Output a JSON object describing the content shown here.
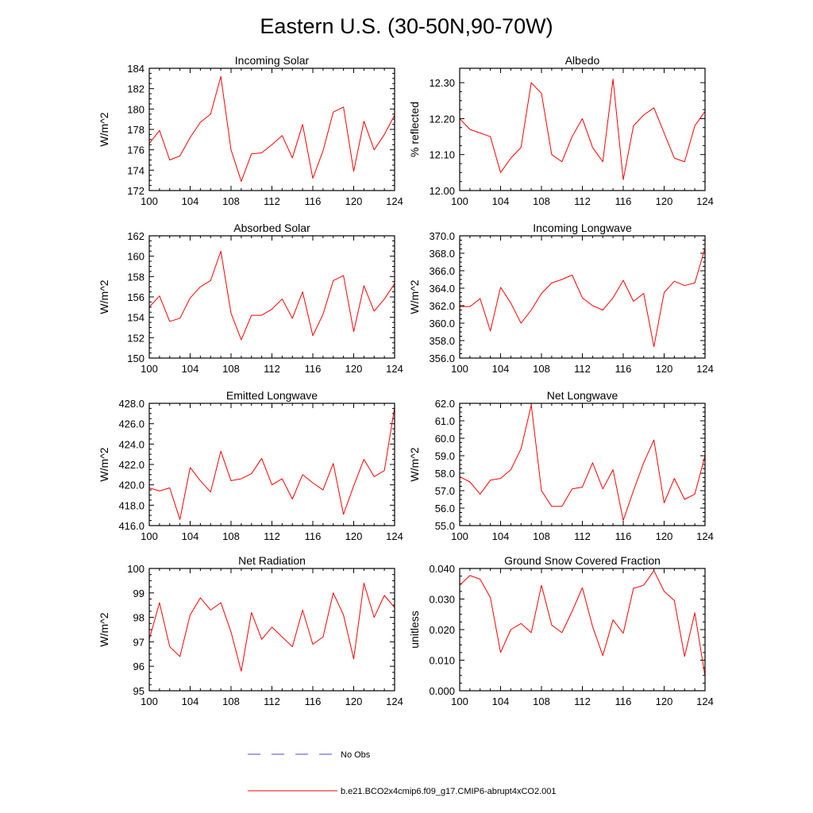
{
  "figure_title": "Eastern U.S. (30-50N,90-70W)",
  "legend": {
    "items": [
      {
        "label": "No Obs",
        "style": "dashed",
        "color": "#4a4ad0"
      },
      {
        "label": "b.e21.BCO2x4cmip6.f09_g17.CMIP6-abrupt4xCO2.001",
        "style": "solid",
        "color": "#ff0000"
      }
    ]
  },
  "chart_data": [
    {
      "type": "line",
      "title": "Incoming Solar",
      "xlabel": "",
      "ylabel": "W/m^2",
      "xlim": [
        100,
        124
      ],
      "ylim": [
        172,
        184
      ],
      "xticks": [
        100,
        104,
        108,
        112,
        116,
        120,
        124
      ],
      "xtick_labels": [
        "100",
        "104",
        "108",
        "112",
        "116",
        "120",
        "124"
      ],
      "yticks": [
        172,
        174,
        176,
        178,
        180,
        182,
        184
      ],
      "ytick_labels": [
        "172",
        "174",
        "176",
        "178",
        "180",
        "182",
        "184"
      ],
      "series": [
        {
          "name": "b.e21.BCO2x4cmip6.f09_g17.CMIP6-abrupt4xCO2.001",
          "color": "#ff0000",
          "x": [
            100,
            101,
            102,
            103,
            104,
            105,
            106,
            107,
            108,
            109,
            110,
            111,
            112,
            113,
            114,
            115,
            116,
            117,
            118,
            119,
            120,
            121,
            122,
            123,
            124
          ],
          "y": [
            176.6,
            177.9,
            175.0,
            175.4,
            177.2,
            178.7,
            179.5,
            183.2,
            176.0,
            172.9,
            175.6,
            175.7,
            176.5,
            177.4,
            175.2,
            178.5,
            173.2,
            175.9,
            179.7,
            180.2,
            173.9,
            178.8,
            176.0,
            177.5,
            179.4
          ]
        }
      ]
    },
    {
      "type": "line",
      "title": "Albedo",
      "xlabel": "",
      "ylabel": "% reflected",
      "xlim": [
        100,
        124
      ],
      "ylim": [
        12.0,
        12.34
      ],
      "xticks": [
        100,
        104,
        108,
        112,
        116,
        120,
        124
      ],
      "xtick_labels": [
        "100",
        "104",
        "108",
        "112",
        "116",
        "120",
        "124"
      ],
      "yticks": [
        12.0,
        12.1,
        12.2,
        12.3
      ],
      "ytick_labels": [
        "12.00",
        "12.10",
        "12.20",
        "12.30"
      ],
      "series": [
        {
          "name": "b.e21.BCO2x4cmip6.f09_g17.CMIP6-abrupt4xCO2.001",
          "color": "#ff0000",
          "x": [
            100,
            101,
            102,
            103,
            104,
            105,
            106,
            107,
            108,
            109,
            110,
            111,
            112,
            113,
            114,
            115,
            116,
            117,
            118,
            119,
            120,
            121,
            122,
            123,
            124
          ],
          "y": [
            12.2,
            12.17,
            12.16,
            12.15,
            12.05,
            12.09,
            12.12,
            12.3,
            12.27,
            12.1,
            12.08,
            12.15,
            12.2,
            12.12,
            12.08,
            12.31,
            12.03,
            12.18,
            12.21,
            12.23,
            12.16,
            12.09,
            12.08,
            12.18,
            12.22
          ]
        }
      ]
    },
    {
      "type": "line",
      "title": "Absorbed Solar",
      "xlabel": "",
      "ylabel": "W/m^2",
      "xlim": [
        100,
        124
      ],
      "ylim": [
        150,
        162
      ],
      "xticks": [
        100,
        104,
        108,
        112,
        116,
        120,
        124
      ],
      "xtick_labels": [
        "100",
        "104",
        "108",
        "112",
        "116",
        "120",
        "124"
      ],
      "yticks": [
        150,
        152,
        154,
        156,
        158,
        160,
        162
      ],
      "ytick_labels": [
        "150",
        "152",
        "154",
        "156",
        "158",
        "160",
        "162"
      ],
      "series": [
        {
          "name": "b.e21.BCO2x4cmip6.f09_g17.CMIP6-abrupt4xCO2.001",
          "color": "#ff0000",
          "x": [
            100,
            101,
            102,
            103,
            104,
            105,
            106,
            107,
            108,
            109,
            110,
            111,
            112,
            113,
            114,
            115,
            116,
            117,
            118,
            119,
            120,
            121,
            122,
            123,
            124
          ],
          "y": [
            155.0,
            156.1,
            153.6,
            153.9,
            155.9,
            157.0,
            157.6,
            160.5,
            154.4,
            151.8,
            154.2,
            154.2,
            154.8,
            155.8,
            153.9,
            156.5,
            152.2,
            154.3,
            157.6,
            158.1,
            152.6,
            157.1,
            154.6,
            155.8,
            157.3
          ]
        }
      ]
    },
    {
      "type": "line",
      "title": "Incoming Longwave",
      "xlabel": "",
      "ylabel": "W/m^2",
      "xlim": [
        100,
        124
      ],
      "ylim": [
        356,
        370
      ],
      "xticks": [
        100,
        104,
        108,
        112,
        116,
        120,
        124
      ],
      "xtick_labels": [
        "100",
        "104",
        "108",
        "112",
        "116",
        "120",
        "124"
      ],
      "yticks": [
        356,
        358,
        360,
        362,
        364,
        366,
        368,
        370
      ],
      "ytick_labels": [
        "356.0",
        "358.0",
        "360.0",
        "362.0",
        "364.0",
        "366.0",
        "368.0",
        "370.0"
      ],
      "series": [
        {
          "name": "b.e21.BCO2x4cmip6.f09_g17.CMIP6-abrupt4xCO2.001",
          "color": "#ff0000",
          "x": [
            100,
            101,
            102,
            103,
            104,
            105,
            106,
            107,
            108,
            109,
            110,
            111,
            112,
            113,
            114,
            115,
            116,
            117,
            118,
            119,
            120,
            121,
            122,
            123,
            124
          ],
          "y": [
            361.9,
            361.9,
            362.8,
            359.1,
            364.1,
            362.3,
            360.0,
            361.5,
            363.4,
            364.6,
            365.0,
            365.5,
            362.9,
            362.0,
            361.5,
            362.9,
            364.9,
            362.5,
            363.4,
            357.3,
            363.5,
            364.8,
            364.3,
            364.6,
            368.6
          ]
        }
      ]
    },
    {
      "type": "line",
      "title": "Emitted Longwave",
      "xlabel": "",
      "ylabel": "W/m^2",
      "xlim": [
        100,
        124
      ],
      "ylim": [
        416,
        428
      ],
      "xticks": [
        100,
        104,
        108,
        112,
        116,
        120,
        124
      ],
      "xtick_labels": [
        "100",
        "104",
        "108",
        "112",
        "116",
        "120",
        "124"
      ],
      "yticks": [
        416,
        418,
        420,
        422,
        424,
        426,
        428
      ],
      "ytick_labels": [
        "416.0",
        "418.0",
        "420.0",
        "422.0",
        "424.0",
        "426.0",
        "428.0"
      ],
      "series": [
        {
          "name": "b.e21.BCO2x4cmip6.f09_g17.CMIP6-abrupt4xCO2.001",
          "color": "#ff0000",
          "x": [
            100,
            101,
            102,
            103,
            104,
            105,
            106,
            107,
            108,
            109,
            110,
            111,
            112,
            113,
            114,
            115,
            116,
            117,
            118,
            119,
            120,
            121,
            122,
            123,
            124
          ],
          "y": [
            419.7,
            419.4,
            419.7,
            416.6,
            421.7,
            420.4,
            419.3,
            423.3,
            420.4,
            420.6,
            421.1,
            422.6,
            420.0,
            420.6,
            418.6,
            421.0,
            420.2,
            419.5,
            422.1,
            417.1,
            419.9,
            422.5,
            420.8,
            421.4,
            427.6
          ]
        }
      ]
    },
    {
      "type": "line",
      "title": "Net Longwave",
      "xlabel": "",
      "ylabel": "W/m^2",
      "xlim": [
        100,
        124
      ],
      "ylim": [
        55,
        62
      ],
      "xticks": [
        100,
        104,
        108,
        112,
        116,
        120,
        124
      ],
      "xtick_labels": [
        "100",
        "104",
        "108",
        "112",
        "116",
        "120",
        "124"
      ],
      "yticks": [
        55,
        56,
        57,
        58,
        59,
        60,
        61,
        62
      ],
      "ytick_labels": [
        "55.0",
        "56.0",
        "57.0",
        "58.0",
        "59.0",
        "60.0",
        "61.0",
        "62.0"
      ],
      "series": [
        {
          "name": "b.e21.BCO2x4cmip6.f09_g17.CMIP6-abrupt4xCO2.001",
          "color": "#ff0000",
          "x": [
            100,
            101,
            102,
            103,
            104,
            105,
            106,
            107,
            108,
            109,
            110,
            111,
            112,
            113,
            114,
            115,
            116,
            117,
            118,
            119,
            120,
            121,
            122,
            123,
            124
          ],
          "y": [
            57.8,
            57.5,
            56.8,
            57.6,
            57.7,
            58.2,
            59.4,
            61.9,
            57.0,
            56.1,
            56.1,
            57.1,
            57.2,
            58.6,
            57.1,
            58.2,
            55.3,
            57.0,
            58.6,
            59.9,
            56.3,
            57.7,
            56.5,
            56.8,
            59.0
          ]
        }
      ]
    },
    {
      "type": "line",
      "title": "Net Radiation",
      "xlabel": "",
      "ylabel": "W/m^2",
      "xlim": [
        100,
        124
      ],
      "ylim": [
        95,
        100
      ],
      "xticks": [
        100,
        104,
        108,
        112,
        116,
        120,
        124
      ],
      "xtick_labels": [
        "100",
        "104",
        "108",
        "112",
        "116",
        "120",
        "124"
      ],
      "yticks": [
        95,
        96,
        97,
        98,
        99,
        100
      ],
      "ytick_labels": [
        "95",
        "96",
        "97",
        "98",
        "99",
        "100"
      ],
      "series": [
        {
          "name": "b.e21.BCO2x4cmip6.f09_g17.CMIP6-abrupt4xCO2.001",
          "color": "#ff0000",
          "x": [
            100,
            101,
            102,
            103,
            104,
            105,
            106,
            107,
            108,
            109,
            110,
            111,
            112,
            113,
            114,
            115,
            116,
            117,
            118,
            119,
            120,
            121,
            122,
            123,
            124
          ],
          "y": [
            97.1,
            98.6,
            96.8,
            96.4,
            98.1,
            98.8,
            98.3,
            98.6,
            97.4,
            95.8,
            98.2,
            97.1,
            97.6,
            97.2,
            96.8,
            98.3,
            96.9,
            97.2,
            99.0,
            98.1,
            96.3,
            99.4,
            98.0,
            98.9,
            98.4
          ]
        }
      ]
    },
    {
      "type": "line",
      "title": "Ground Snow Covered Fraction",
      "xlabel": "",
      "ylabel": "unitless",
      "xlim": [
        100,
        124
      ],
      "ylim": [
        0.0,
        0.04
      ],
      "xticks": [
        100,
        104,
        108,
        112,
        116,
        120,
        124
      ],
      "xtick_labels": [
        "100",
        "104",
        "108",
        "112",
        "116",
        "120",
        "124"
      ],
      "yticks": [
        0.0,
        0.01,
        0.02,
        0.03,
        0.04
      ],
      "ytick_labels": [
        "0.000",
        "0.010",
        "0.020",
        "0.030",
        "0.040"
      ],
      "series": [
        {
          "name": "b.e21.BCO2x4cmip6.f09_g17.CMIP6-abrupt4xCO2.001",
          "color": "#ff0000",
          "x": [
            100,
            101,
            102,
            103,
            104,
            105,
            106,
            107,
            108,
            109,
            110,
            111,
            112,
            113,
            114,
            115,
            116,
            117,
            118,
            119,
            120,
            121,
            122,
            123,
            124
          ],
          "y": [
            0.0345,
            0.0377,
            0.0365,
            0.0305,
            0.0125,
            0.02,
            0.022,
            0.019,
            0.0345,
            0.0215,
            0.019,
            0.026,
            0.0337,
            0.021,
            0.0115,
            0.0232,
            0.0188,
            0.0335,
            0.0345,
            0.0393,
            0.0325,
            0.0295,
            0.0112,
            0.0255,
            0.0048
          ]
        }
      ]
    }
  ]
}
